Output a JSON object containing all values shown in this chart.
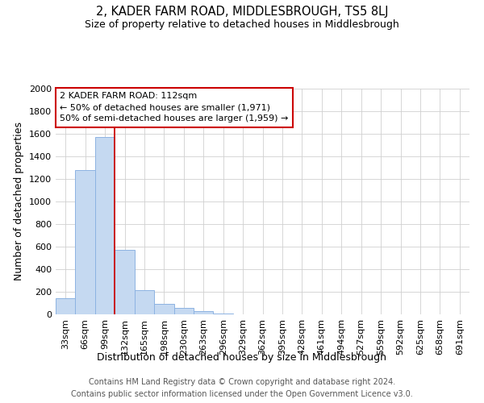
{
  "title": "2, KADER FARM ROAD, MIDDLESBROUGH, TS5 8LJ",
  "subtitle": "Size of property relative to detached houses in Middlesbrough",
  "xlabel": "Distribution of detached houses by size in Middlesbrough",
  "ylabel": "Number of detached properties",
  "categories": [
    "33sqm",
    "66sqm",
    "99sqm",
    "132sqm",
    "165sqm",
    "198sqm",
    "230sqm",
    "263sqm",
    "296sqm",
    "329sqm",
    "362sqm",
    "395sqm",
    "428sqm",
    "461sqm",
    "494sqm",
    "527sqm",
    "559sqm",
    "592sqm",
    "625sqm",
    "658sqm",
    "691sqm"
  ],
  "values": [
    140,
    1280,
    1570,
    570,
    215,
    95,
    55,
    30,
    5,
    2,
    1,
    0,
    0,
    0,
    0,
    0,
    0,
    0,
    0,
    0,
    0
  ],
  "bar_color": "#c5d9f1",
  "bar_edgecolor": "#8db3e2",
  "bar_linewidth": 0.7,
  "redline_x": 2.5,
  "annotation_title": "2 KADER FARM ROAD: 112sqm",
  "annotation_line1": "← 50% of detached houses are smaller (1,971)",
  "annotation_line2": "50% of semi-detached houses are larger (1,959) →",
  "annotation_box_facecolor": "#ffffff",
  "annotation_box_edgecolor": "#cc0000",
  "ylim": [
    0,
    2000
  ],
  "yticks": [
    0,
    200,
    400,
    600,
    800,
    1000,
    1200,
    1400,
    1600,
    1800,
    2000
  ],
  "grid_color": "#d0d0d0",
  "background_color": "#ffffff",
  "footer_line1": "Contains HM Land Registry data © Crown copyright and database right 2024.",
  "footer_line2": "Contains public sector information licensed under the Open Government Licence v3.0.",
  "title_fontsize": 10.5,
  "subtitle_fontsize": 9,
  "axis_label_fontsize": 9,
  "tick_fontsize": 8,
  "annotation_fontsize": 8,
  "footer_fontsize": 7
}
